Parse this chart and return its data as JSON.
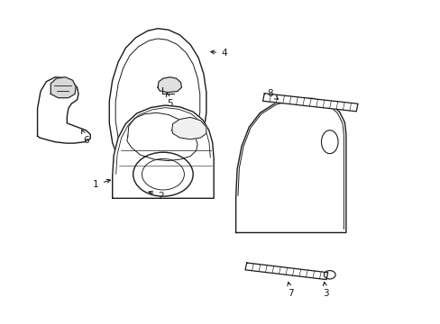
{
  "bg_color": "#ffffff",
  "line_color": "#1a1a1a",
  "lw": 1.0,
  "labels": [
    {
      "num": "1",
      "xt": 0.218,
      "yt": 0.43,
      "xa": 0.258,
      "ya": 0.448
    },
    {
      "num": "2",
      "xt": 0.365,
      "yt": 0.395,
      "xa": 0.33,
      "ya": 0.412
    },
    {
      "num": "3",
      "xt": 0.74,
      "yt": 0.095,
      "xa": 0.734,
      "ya": 0.14
    },
    {
      "num": "4",
      "xt": 0.508,
      "yt": 0.835,
      "xa": 0.47,
      "ya": 0.842
    },
    {
      "num": "5",
      "xt": 0.385,
      "yt": 0.68,
      "xa": 0.378,
      "ya": 0.716
    },
    {
      "num": "6",
      "xt": 0.195,
      "yt": 0.568,
      "xa": 0.185,
      "ya": 0.602
    },
    {
      "num": "7",
      "xt": 0.66,
      "yt": 0.095,
      "xa": 0.652,
      "ya": 0.14
    },
    {
      "num": "8",
      "xt": 0.612,
      "yt": 0.71,
      "xa": 0.638,
      "ya": 0.688
    }
  ]
}
